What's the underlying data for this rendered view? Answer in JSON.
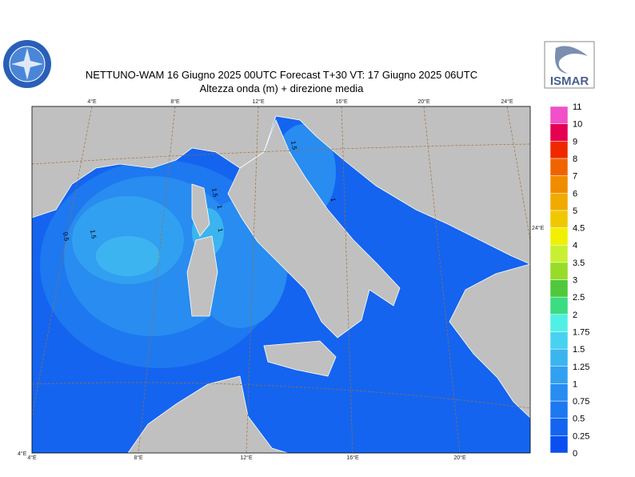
{
  "header": {
    "title": "NETTUNO-WAM  16   Giugno  2025 00UTC Forecast T+30 VT: 17   Giugno  2025 06UTC",
    "subtitle": "Altezza onda (m) + direzione media",
    "logo_right": "ISMAR"
  },
  "map": {
    "top_lon_labels": [
      "4°E",
      "8°E",
      "12°E",
      "16°E",
      "20°E",
      "24°E"
    ],
    "bottom_lon_labels": [
      "4°E",
      "8°E",
      "12°E",
      "16°E",
      "20°E"
    ],
    "right_label": "24°E",
    "corner_label": "4°E",
    "contour_labels": [
      "0.5",
      "1.5",
      "1.5",
      "1",
      "1",
      "1.5",
      "1"
    ]
  },
  "colorbar": {
    "levels": [
      "0",
      "0.25",
      "0.5",
      "0.75",
      "1",
      "1.25",
      "1.5",
      "1.75",
      "2",
      "2.5",
      "3",
      "3.5",
      "4",
      "4.5",
      "5",
      "6",
      "7",
      "8",
      "9",
      "10",
      "11"
    ],
    "colors": [
      "#0a50f0",
      "#1464f0",
      "#1e78f0",
      "#288cf0",
      "#32a0f0",
      "#3cb4f0",
      "#46d2f0",
      "#50f0e6",
      "#3cdc82",
      "#50c83c",
      "#96dc28",
      "#c8f032",
      "#f0f000",
      "#f0c800",
      "#f0aa00",
      "#f08c00",
      "#f06400",
      "#f02800",
      "#e60050",
      "#f050c8"
    ]
  }
}
